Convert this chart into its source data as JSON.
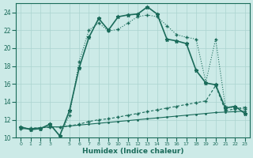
{
  "xlabel": "Humidex (Indice chaleur)",
  "background_color": "#cceae7",
  "grid_color": "#aad4d0",
  "line_color": "#1a6b5a",
  "ylim": [
    10,
    25
  ],
  "xlim": [
    -0.5,
    23.5
  ],
  "yticks": [
    10,
    12,
    14,
    16,
    18,
    20,
    22,
    24
  ],
  "xticks": [
    0,
    1,
    2,
    3,
    5,
    6,
    7,
    8,
    9,
    10,
    11,
    12,
    13,
    14,
    15,
    16,
    17,
    18,
    19,
    20,
    21,
    22,
    23
  ],
  "s1_x": [
    0,
    1,
    2,
    3,
    4,
    5,
    6,
    7,
    8,
    9,
    10,
    11,
    12,
    13,
    14,
    15,
    16,
    17,
    18,
    19,
    20,
    21,
    22,
    23
  ],
  "s1_y": [
    11.2,
    10.9,
    11.0,
    11.5,
    10.2,
    13.0,
    17.8,
    21.2,
    23.3,
    22.0,
    23.5,
    23.7,
    23.8,
    24.6,
    23.8,
    21.0,
    20.8,
    20.5,
    17.5,
    16.1,
    15.9,
    13.3,
    13.5,
    12.7
  ],
  "s2_x": [
    0,
    1,
    2,
    3,
    4,
    5,
    6,
    7,
    8,
    9,
    10,
    11,
    12,
    13,
    14,
    15,
    16,
    17,
    18,
    19,
    20,
    21,
    22,
    23
  ],
  "s2_y": [
    11.2,
    10.9,
    11.0,
    11.5,
    10.2,
    12.5,
    18.5,
    22.0,
    22.8,
    21.9,
    22.1,
    22.8,
    23.5,
    23.7,
    23.5,
    22.5,
    21.5,
    21.2,
    21.0,
    16.2,
    21.0,
    13.5,
    13.3,
    13.2
  ],
  "s3_x": [
    0,
    1,
    2,
    3,
    4,
    5,
    6,
    7,
    8,
    9,
    10,
    11,
    12,
    13,
    14,
    15,
    16,
    17,
    18,
    19,
    20,
    21,
    22,
    23
  ],
  "s3_y": [
    11.0,
    11.0,
    11.1,
    11.2,
    11.2,
    11.3,
    11.4,
    11.5,
    11.6,
    11.7,
    11.8,
    11.9,
    12.0,
    12.1,
    12.2,
    12.3,
    12.4,
    12.5,
    12.6,
    12.7,
    12.8,
    12.85,
    12.9,
    12.95
  ],
  "s4_x": [
    0,
    1,
    2,
    3,
    4,
    5,
    6,
    7,
    8,
    9,
    10,
    11,
    12,
    13,
    14,
    15,
    16,
    17,
    18,
    19,
    20,
    21,
    22,
    23
  ],
  "s4_y": [
    11.0,
    11.05,
    11.1,
    11.15,
    11.2,
    11.3,
    11.5,
    11.8,
    12.0,
    12.1,
    12.3,
    12.5,
    12.7,
    12.9,
    13.1,
    13.3,
    13.5,
    13.7,
    13.9,
    14.1,
    15.8,
    13.0,
    13.2,
    13.4
  ]
}
